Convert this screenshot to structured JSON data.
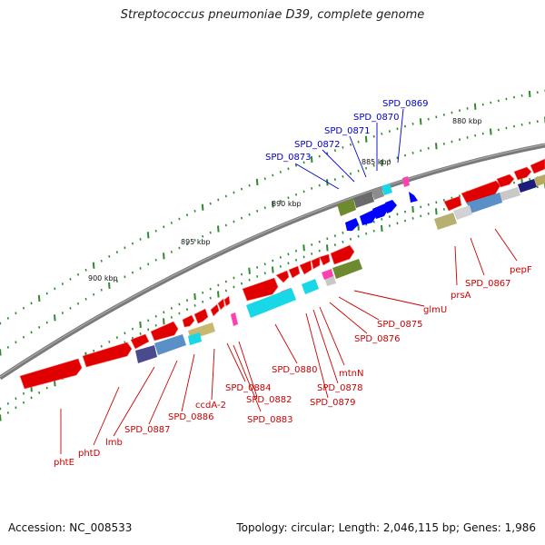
{
  "title": "Streptococcus pneumoniae D39, complete genome",
  "footer": {
    "accession": "Accession: NC_008533",
    "summary": "Topology: circular; Length: 2,046,115 bp; Genes: 1,986"
  },
  "colors": {
    "backbone": "#7b7b7b",
    "tick": "#2e8b2e",
    "label_red": "#cc0000",
    "label_blue": "#0000cc",
    "forward_gene": "#ff0000",
    "reverse_gene_blue": "#0000ff"
  },
  "scale_labels": [
    "880 kbp",
    "885 kbp",
    "890 kbp",
    "895 kbp",
    "900 kbp"
  ],
  "gene_labels": {
    "blue": [
      "SPD_0869",
      "SPD_0870",
      "SPD_0871",
      "SPD_0872",
      "SPD_0873"
    ],
    "red": [
      "pepF",
      "SPD_0867",
      "prsA",
      "glmU",
      "SPD_0875",
      "SPD_0876",
      "mtnN",
      "SPD_0878",
      "SPD_0879",
      "SPD_0880",
      "SPD_0882",
      "SPD_0883",
      "SPD_0884",
      "ccdA-2",
      "SPD_0886",
      "SPD_0887",
      "lmb",
      "phtD",
      "phtE"
    ]
  }
}
